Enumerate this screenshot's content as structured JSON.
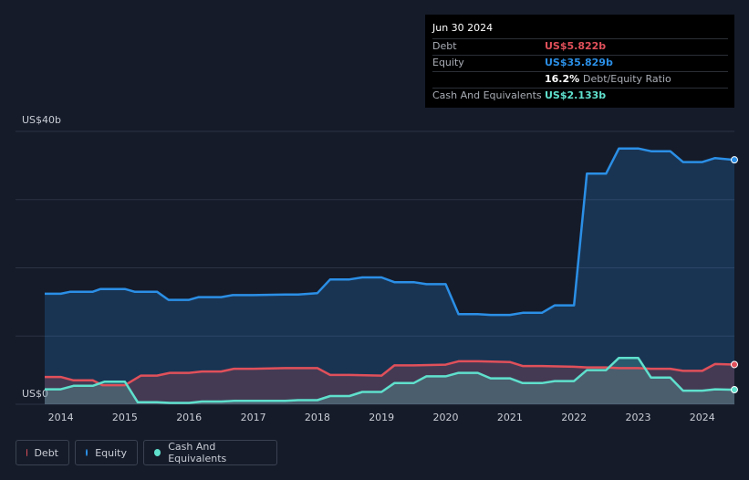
{
  "tooltip": {
    "date": "Jun 30 2024",
    "debt_label": "Debt",
    "debt_value": "US$5.822b",
    "equity_label": "Equity",
    "equity_value": "US$35.829b",
    "ratio_value": "16.2%",
    "ratio_label": "Debt/Equity Ratio",
    "cash_label": "Cash And Equivalents",
    "cash_value": "US$2.133b"
  },
  "legend": {
    "debt": "Debt",
    "equity": "Equity",
    "cash": "Cash And Equivalents"
  },
  "colors": {
    "debt": "#e0505a",
    "equity": "#2b8fe6",
    "cash": "#5fe0cd"
  },
  "chart_data": {
    "type": "area",
    "y_top_label": "US$40b",
    "y_bottom_label": "US$0",
    "ylim": [
      0,
      40
    ],
    "xlim": [
      2013.75,
      2024.5
    ],
    "x_ticks": [
      "2014",
      "2015",
      "2016",
      "2017",
      "2018",
      "2019",
      "2020",
      "2021",
      "2022",
      "2023",
      "2024"
    ],
    "series": [
      {
        "name": "Equity",
        "x": [
          2013.75,
          2014.0,
          2014.15,
          2014.5,
          2014.62,
          2015.0,
          2015.15,
          2015.5,
          2015.68,
          2016.0,
          2016.15,
          2016.5,
          2016.68,
          2017.0,
          2017.5,
          2017.7,
          2018.0,
          2018.2,
          2018.5,
          2018.7,
          2019.0,
          2019.2,
          2019.5,
          2019.7,
          2020.0,
          2020.2,
          2020.5,
          2020.7,
          2021.0,
          2021.2,
          2021.5,
          2021.7,
          2022.0,
          2022.2,
          2022.5,
          2022.7,
          2023.0,
          2023.2,
          2023.5,
          2023.7,
          2024.0,
          2024.2,
          2024.5
        ],
        "values": [
          16.2,
          16.2,
          16.5,
          16.5,
          16.9,
          16.9,
          16.5,
          16.5,
          15.3,
          15.3,
          15.7,
          15.7,
          16.0,
          16.0,
          16.1,
          16.1,
          16.3,
          18.3,
          18.3,
          18.6,
          18.6,
          17.9,
          17.9,
          17.6,
          17.6,
          13.2,
          13.2,
          13.1,
          13.1,
          13.4,
          13.4,
          14.5,
          14.5,
          33.8,
          33.8,
          37.5,
          37.5,
          37.1,
          37.1,
          35.5,
          35.5,
          36.1,
          35.829
        ]
      },
      {
        "name": "Debt",
        "x": [
          2013.75,
          2014.0,
          2014.2,
          2014.5,
          2014.65,
          2015.0,
          2015.25,
          2015.5,
          2015.7,
          2016.0,
          2016.2,
          2016.5,
          2016.7,
          2017.0,
          2017.5,
          2018.0,
          2018.2,
          2018.5,
          2019.0,
          2019.2,
          2019.5,
          2020.0,
          2020.2,
          2020.5,
          2021.0,
          2021.2,
          2021.5,
          2022.0,
          2022.2,
          2022.5,
          2022.7,
          2023.0,
          2023.2,
          2023.5,
          2023.7,
          2024.0,
          2024.2,
          2024.5
        ],
        "values": [
          4.0,
          4.0,
          3.5,
          3.5,
          2.8,
          2.8,
          4.2,
          4.2,
          4.6,
          4.6,
          4.8,
          4.8,
          5.2,
          5.2,
          5.3,
          5.3,
          4.3,
          4.3,
          4.2,
          5.7,
          5.7,
          5.8,
          6.3,
          6.3,
          6.2,
          5.6,
          5.6,
          5.5,
          5.4,
          5.4,
          5.3,
          5.3,
          5.2,
          5.2,
          4.9,
          4.9,
          5.9,
          5.822
        ]
      },
      {
        "name": "Cash And Equivalents",
        "x": [
          2013.75,
          2014.0,
          2014.2,
          2014.5,
          2014.68,
          2015.0,
          2015.2,
          2015.5,
          2015.7,
          2016.0,
          2016.2,
          2016.5,
          2016.7,
          2017.0,
          2017.5,
          2017.7,
          2018.0,
          2018.2,
          2018.5,
          2018.7,
          2019.0,
          2019.2,
          2019.5,
          2019.7,
          2020.0,
          2020.2,
          2020.5,
          2020.7,
          2021.0,
          2021.2,
          2021.5,
          2021.7,
          2022.0,
          2022.2,
          2022.5,
          2022.7,
          2023.0,
          2023.2,
          2023.5,
          2023.7,
          2024.0,
          2024.2,
          2024.5
        ],
        "values": [
          2.2,
          2.2,
          2.7,
          2.7,
          3.3,
          3.3,
          0.3,
          0.3,
          0.2,
          0.2,
          0.4,
          0.4,
          0.5,
          0.5,
          0.5,
          0.6,
          0.6,
          1.2,
          1.2,
          1.8,
          1.8,
          3.1,
          3.1,
          4.1,
          4.1,
          4.6,
          4.6,
          3.8,
          3.8,
          3.1,
          3.1,
          3.4,
          3.4,
          5.0,
          5.0,
          6.8,
          6.8,
          3.9,
          3.9,
          2.0,
          2.0,
          2.2,
          2.133
        ]
      }
    ]
  }
}
